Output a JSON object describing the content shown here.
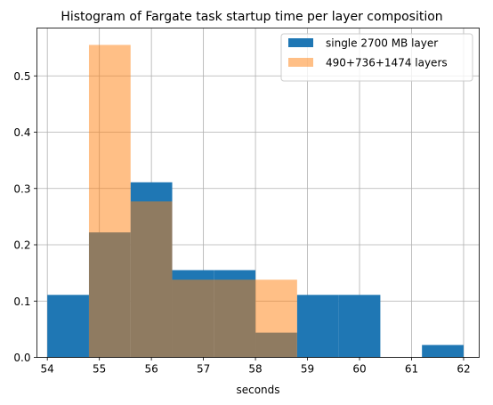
{
  "chart_data": {
    "type": "histogram",
    "title": "Histogram of Fargate task startup time per layer composition",
    "xlabel": "seconds",
    "ylabel": "",
    "xlim": [
      53.8,
      62.3
    ],
    "ylim": [
      0,
      0.585
    ],
    "xticks": [
      54,
      55,
      56,
      57,
      58,
      59,
      60,
      61,
      62
    ],
    "yticks": [
      0.0,
      0.1,
      0.2,
      0.3,
      0.4,
      0.5
    ],
    "grid": true,
    "legend": "top-right",
    "series": [
      {
        "name": "single 2700 MB layer",
        "color": "#1f77b4",
        "opacity": 1,
        "bins": [
          {
            "x0": 54.0,
            "x1": 54.8,
            "value": 0.111
          },
          {
            "x0": 54.8,
            "x1": 55.6,
            "value": 0.222
          },
          {
            "x0": 55.6,
            "x1": 56.4,
            "value": 0.311
          },
          {
            "x0": 56.4,
            "x1": 57.2,
            "value": 0.155
          },
          {
            "x0": 57.2,
            "x1": 58.0,
            "value": 0.155
          },
          {
            "x0": 58.0,
            "x1": 58.8,
            "value": 0.044
          },
          {
            "x0": 58.8,
            "x1": 59.6,
            "value": 0.111
          },
          {
            "x0": 59.6,
            "x1": 60.4,
            "value": 0.111
          },
          {
            "x0": 60.4,
            "x1": 61.2,
            "value": 0.0
          },
          {
            "x0": 61.2,
            "x1": 62.0,
            "value": 0.022
          }
        ]
      },
      {
        "name": "490+736+1474 layers",
        "color": "#ff7f0e",
        "opacity": 0.5,
        "bins": [
          {
            "x0": 54.8,
            "x1": 55.6,
            "value": 0.555
          },
          {
            "x0": 55.6,
            "x1": 56.4,
            "value": 0.277
          },
          {
            "x0": 56.4,
            "x1": 57.2,
            "value": 0.138
          },
          {
            "x0": 57.2,
            "x1": 58.0,
            "value": 0.138
          },
          {
            "x0": 58.0,
            "x1": 58.8,
            "value": 0.138
          }
        ]
      }
    ]
  }
}
